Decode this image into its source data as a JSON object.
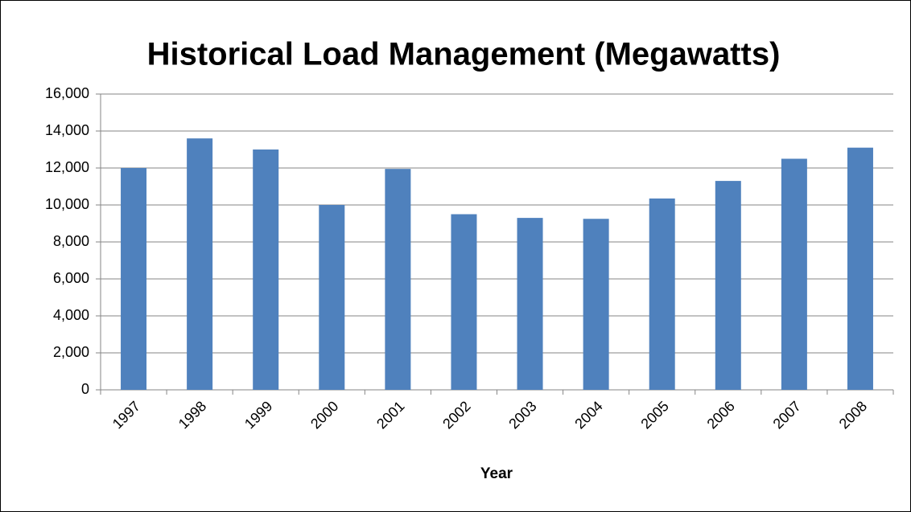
{
  "chart_data": {
    "type": "bar",
    "title": "Historical Load Management (Megawatts)",
    "x_label": "Year",
    "categories": [
      "1997",
      "1998",
      "1999",
      "2000",
      "2001",
      "2002",
      "2003",
      "2004",
      "2005",
      "2006",
      "2007",
      "2008"
    ],
    "values": [
      12000,
      13600,
      13000,
      10000,
      11950,
      9500,
      9300,
      9250,
      10350,
      11300,
      12500,
      13100
    ],
    "color": "#4f81bd",
    "ylim": [
      0,
      16000
    ],
    "yticks": [
      0,
      {
        "value": 2000,
        "label": "2,000"
      },
      {
        "value": 4000,
        "label": "4,000"
      },
      {
        "value": 6000,
        "label": "6,000"
      },
      {
        "value": 8000,
        "label": "8,000"
      },
      {
        "value": 10000,
        "label": "10,000"
      },
      {
        "value": 12000,
        "label": "12,000"
      },
      {
        "value": 14000,
        "label": "14,000"
      },
      {
        "value": 16000,
        "label": "16,000"
      }
    ],
    "grid": true
  }
}
